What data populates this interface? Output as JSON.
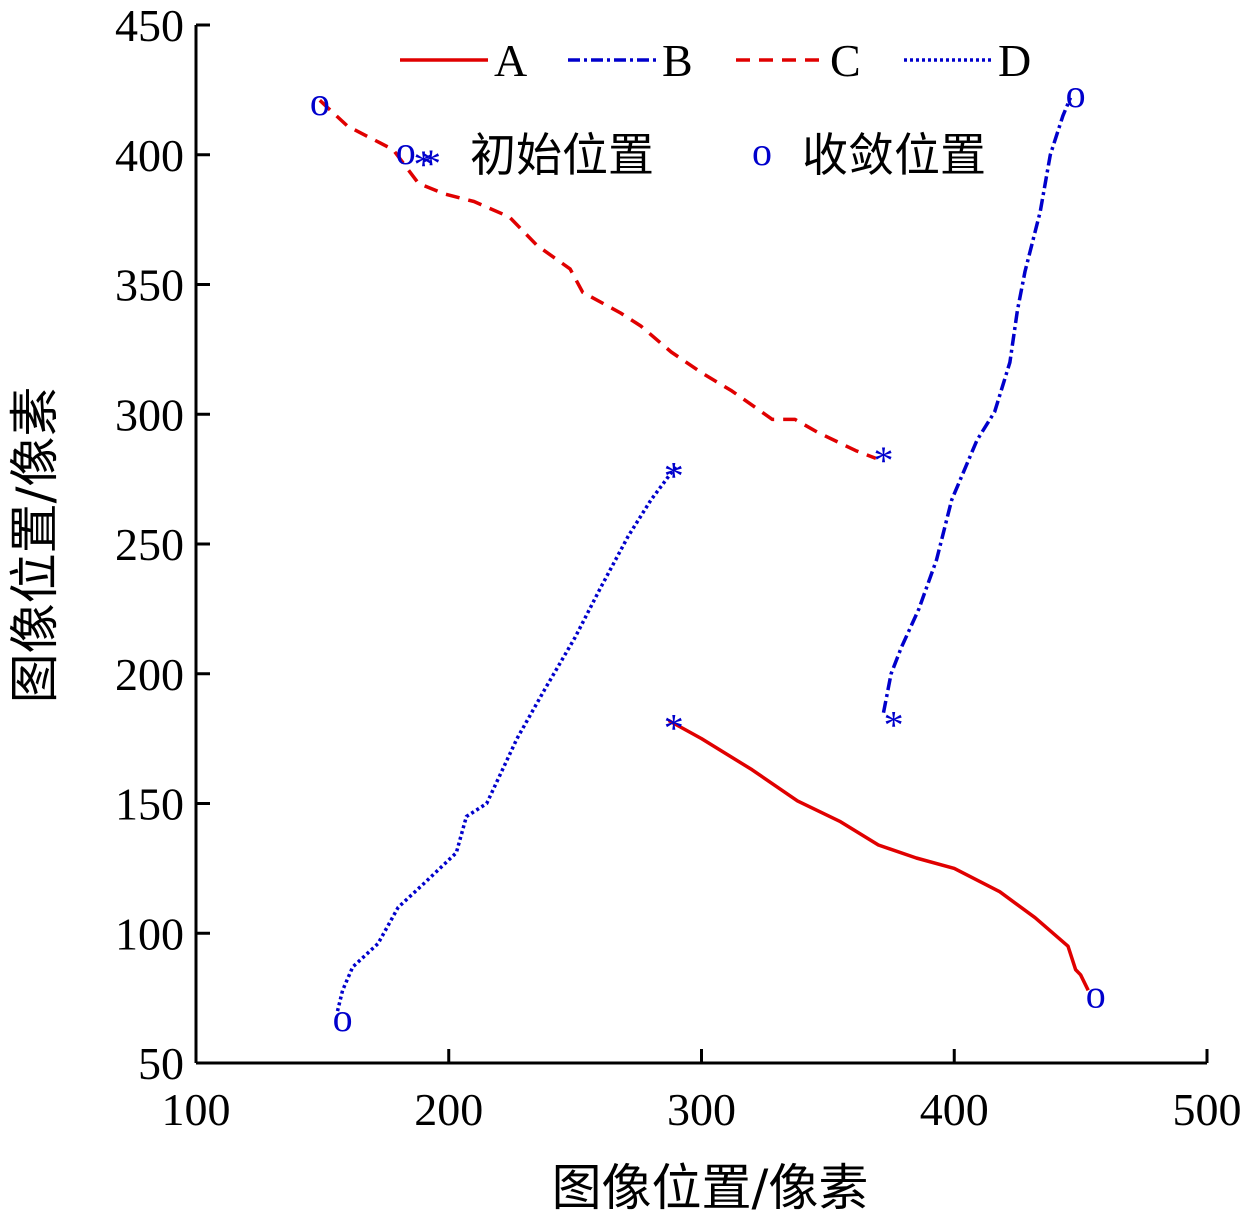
{
  "chart_data": {
    "type": "line",
    "xlabel": "图像位置/像素",
    "ylabel": "图像位置/像素",
    "xlim": [
      100,
      500
    ],
    "ylim": [
      50,
      450
    ],
    "xticks": [
      100,
      200,
      300,
      400,
      500
    ],
    "yticks": [
      50,
      100,
      150,
      200,
      250,
      300,
      350,
      400,
      450
    ],
    "grid": false,
    "legend_position": "top",
    "series": [
      {
        "name": "A",
        "color": "#e00000",
        "style": "solid",
        "points": [
          [
            287,
            182
          ],
          [
            300,
            175
          ],
          [
            320,
            163
          ],
          [
            338,
            151
          ],
          [
            355,
            143
          ],
          [
            370,
            134
          ],
          [
            385,
            129
          ],
          [
            400,
            125
          ],
          [
            418,
            116
          ],
          [
            432,
            106
          ],
          [
            445,
            95
          ],
          [
            448,
            86
          ],
          [
            450,
            84
          ],
          [
            453,
            78
          ]
        ]
      },
      {
        "name": "B",
        "color": "#0000cc",
        "style": "dashdot",
        "points": [
          [
            372,
            185
          ],
          [
            375,
            200
          ],
          [
            379,
            210
          ],
          [
            386,
            225
          ],
          [
            393,
            244
          ],
          [
            399,
            267
          ],
          [
            409,
            290
          ],
          [
            416,
            301
          ],
          [
            422,
            320
          ],
          [
            425,
            340
          ],
          [
            428,
            355
          ],
          [
            434,
            378
          ],
          [
            438,
            400
          ],
          [
            443,
            415
          ],
          [
            446,
            422
          ]
        ]
      },
      {
        "name": "C",
        "color": "#e00000",
        "style": "dashed",
        "points": [
          [
            149,
            421
          ],
          [
            160,
            411
          ],
          [
            178,
            402
          ],
          [
            188,
            389
          ],
          [
            198,
            385
          ],
          [
            210,
            382
          ],
          [
            224,
            376
          ],
          [
            235,
            365
          ],
          [
            248,
            356
          ],
          [
            253,
            347
          ],
          [
            268,
            339
          ],
          [
            276,
            334
          ],
          [
            288,
            324
          ],
          [
            300,
            316
          ],
          [
            312,
            309
          ],
          [
            328,
            298
          ],
          [
            337,
            298
          ],
          [
            346,
            293
          ],
          [
            361,
            286
          ],
          [
            369,
            283
          ]
        ]
      },
      {
        "name": "D",
        "color": "#0000cc",
        "style": "dotted",
        "points": [
          [
            156,
            70
          ],
          [
            158,
            78
          ],
          [
            162,
            87
          ],
          [
            172,
            96
          ],
          [
            180,
            110
          ],
          [
            190,
            119
          ],
          [
            203,
            131
          ],
          [
            207,
            145
          ],
          [
            215,
            150
          ],
          [
            227,
            175
          ],
          [
            238,
            194
          ],
          [
            250,
            214
          ],
          [
            260,
            233
          ],
          [
            271,
            253
          ],
          [
            280,
            267
          ],
          [
            290,
            280
          ]
        ]
      }
    ],
    "markers": {
      "initial_symbol": "*",
      "converged_symbol": "o",
      "initial": [
        [
          289,
          184
        ],
        [
          376,
          185
        ],
        [
          372,
          287
        ],
        [
          289,
          281
        ],
        [
          190,
          401
        ]
      ],
      "converged": [
        [
          456,
          76
        ],
        [
          448,
          423
        ],
        [
          149,
          420
        ],
        [
          158,
          67
        ],
        [
          183,
          401
        ]
      ]
    },
    "legend": {
      "row1": [
        "A",
        "B",
        "C",
        "D"
      ],
      "initial_label": "初始位置",
      "converged_label": "收敛位置"
    }
  }
}
